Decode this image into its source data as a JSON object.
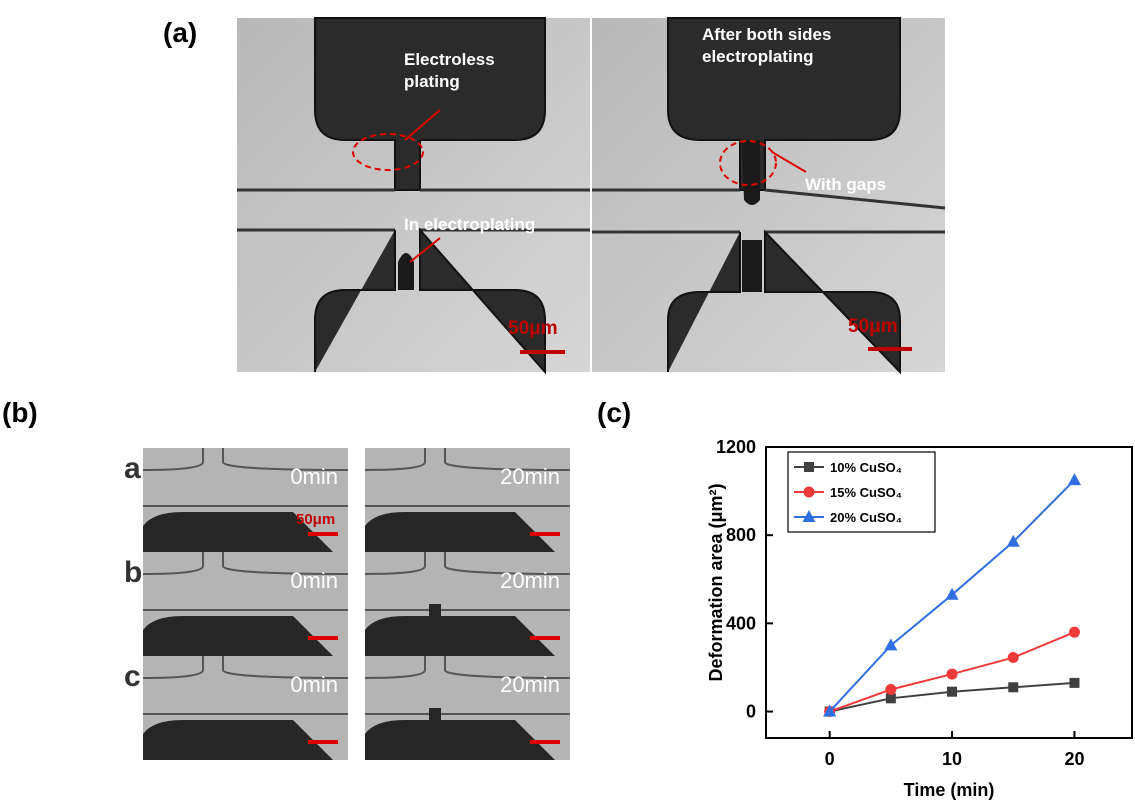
{
  "panel_labels": [
    "(a)",
    "(b)",
    "(c)"
  ],
  "panel_a": {
    "left": {
      "top_note": "Electroless\nplating",
      "bottom_note": "In electroplating",
      "scale_bar": "50μm"
    },
    "right": {
      "top_note": "After both sides\nelectroplating",
      "side_note": "With gaps",
      "scale_bar": "50μm"
    }
  },
  "panel_b": {
    "rows": [
      {
        "label": "a",
        "left": "0min",
        "right": "20min"
      },
      {
        "label": "b",
        "left": "0min",
        "right": "20min"
      },
      {
        "label": "c",
        "left": "0min",
        "right": "20min"
      }
    ],
    "scale_bar": "50μm"
  },
  "chart_data": {
    "type": "line",
    "x_label": "Time (min)",
    "y_label": "Deformation area (μm²)",
    "x": [
      0,
      5,
      10,
      15,
      20
    ],
    "series": [
      {
        "name": "10% CuSO₄",
        "color": "#404040",
        "marker": "square",
        "values": [
          0,
          60,
          90,
          110,
          130
        ]
      },
      {
        "name": "15% CuSO₄",
        "color": "#f03a3a",
        "marker": "circle",
        "values": [
          0,
          100,
          170,
          245,
          360
        ]
      },
      {
        "name": "20% CuSO₄",
        "color": "#2f6fe0",
        "marker": "triangle",
        "values": [
          0,
          300,
          530,
          770,
          1050
        ]
      }
    ],
    "xlim": [
      -5.2,
      24.7
    ],
    "ylim": [
      -120,
      1200
    ],
    "xticks": [
      0,
      10,
      20
    ],
    "yticks": [
      0,
      400,
      800,
      1200
    ],
    "legend": "upper-left"
  }
}
